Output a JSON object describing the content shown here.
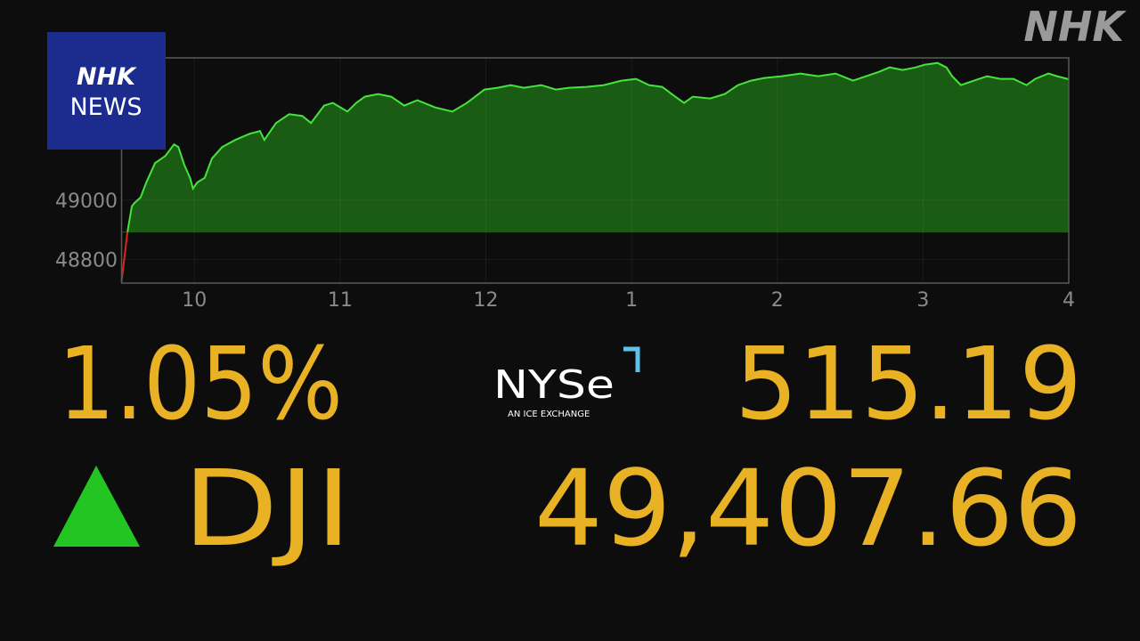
{
  "brand": {
    "corner_logo": "NHK",
    "box_top": "NHK",
    "box_bottom": "NEWS"
  },
  "exchange": {
    "name": "NYSe",
    "tagline": "AN ICE EXCHANGE"
  },
  "quote": {
    "index": "DJI",
    "change_percent": "1.05%",
    "change": "515.19",
    "price": "49,407.66"
  },
  "chart_data": {
    "type": "area",
    "x": [
      9.5,
      9.54,
      9.57,
      9.59,
      9.63,
      9.67,
      9.73,
      9.8,
      9.86,
      9.89,
      9.93,
      9.97,
      9.99,
      10.02,
      10.07,
      10.12,
      10.19,
      10.28,
      10.38,
      10.45,
      10.48,
      10.56,
      10.65,
      10.74,
      10.8,
      10.89,
      10.95,
      11.05,
      11.11,
      11.17,
      11.26,
      11.35,
      11.44,
      11.53,
      11.65,
      11.77,
      11.87,
      11.99,
      12.08,
      12.17,
      12.26,
      12.38,
      12.48,
      12.57,
      12.69,
      12.81,
      12.93,
      13.03,
      13.12,
      13.21,
      13.3,
      13.36,
      13.42,
      13.54,
      13.64,
      13.73,
      13.82,
      13.91,
      14.03,
      14.16,
      14.28,
      14.4,
      14.52,
      14.61,
      14.7,
      14.77,
      14.86,
      14.95,
      15.01,
      15.1,
      15.16,
      15.2,
      15.26,
      15.35,
      15.44,
      15.53,
      15.62,
      15.71,
      15.77,
      15.86,
      15.92,
      16
    ],
    "values": [
      48725,
      48890,
      48979,
      48991,
      49009,
      49060,
      49125,
      49149,
      49188,
      49179,
      49119,
      49075,
      49039,
      49060,
      49075,
      49140,
      49179,
      49203,
      49224,
      49233,
      49203,
      49260,
      49290,
      49284,
      49260,
      49319,
      49328,
      49299,
      49328,
      49349,
      49358,
      49349,
      49319,
      49337,
      49313,
      49299,
      49328,
      49373,
      49379,
      49388,
      49379,
      49388,
      49373,
      49379,
      49382,
      49388,
      49403,
      49409,
      49388,
      49382,
      49349,
      49328,
      49349,
      49343,
      49358,
      49388,
      49403,
      49412,
      49418,
      49427,
      49418,
      49427,
      49403,
      49418,
      49433,
      49448,
      49439,
      49448,
      49457,
      49463,
      49448,
      49418,
      49388,
      49403,
      49418,
      49409,
      49409,
      49388,
      49409,
      49427,
      49418,
      49408
    ],
    "baseline": 48892.47,
    "color": "#45e43c",
    "fill": "#1a5c13",
    "below_color": "#e0241c",
    "xlim": [
      9.5,
      16
    ],
    "xticks": [
      10,
      11,
      12,
      {
        "value": 13,
        "label": "1"
      },
      {
        "value": 14,
        "label": "2"
      },
      {
        "value": 15,
        "label": "3"
      },
      {
        "value": 16,
        "label": "4"
      }
    ],
    "ylim": [
      48720,
      49480
    ],
    "yticks": [
      48800,
      49000
    ],
    "grid": true
  }
}
